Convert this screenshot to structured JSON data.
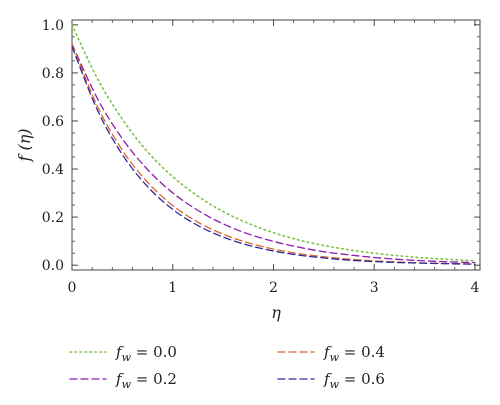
{
  "chart_data": {
    "type": "line",
    "xlabel": "η",
    "ylabel": "f (η)",
    "xlim": [
      0,
      4.05
    ],
    "ylim": [
      -0.02,
      1.02
    ],
    "x_ticks": [
      0,
      1,
      2,
      3,
      4
    ],
    "y_ticks": [
      0.0,
      0.2,
      0.4,
      0.6,
      0.8,
      1.0
    ],
    "x_tick_labels": [
      "0",
      "1",
      "2",
      "3",
      "4"
    ],
    "y_tick_labels": [
      "0.0",
      "0.2",
      "0.4",
      "0.6",
      "0.8",
      "1.0"
    ],
    "legend_position": "bottom",
    "x": [
      0,
      0.25,
      0.5,
      0.75,
      1.0,
      1.25,
      1.5,
      1.75,
      2.0,
      2.25,
      2.5,
      2.75,
      3.0,
      3.25,
      3.5,
      3.75,
      4.0
    ],
    "series": [
      {
        "name": "f",
        "subscript": "w",
        "value": "= 0.0",
        "color": "#7cc242",
        "style": "dotted",
        "values": [
          1.0,
          0.778,
          0.607,
          0.472,
          0.368,
          0.287,
          0.223,
          0.174,
          0.135,
          0.105,
          0.082,
          0.064,
          0.05,
          0.039,
          0.03,
          0.024,
          0.018
        ]
      },
      {
        "name": "f",
        "subscript": "w",
        "value": "= 0.2",
        "color": "#8b1fa8",
        "style": "dashed",
        "values": [
          0.92,
          0.695,
          0.526,
          0.398,
          0.301,
          0.228,
          0.172,
          0.13,
          0.099,
          0.075,
          0.056,
          0.043,
          0.032,
          0.024,
          0.018,
          0.014,
          0.011
        ]
      },
      {
        "name": "f",
        "subscript": "w",
        "value": "= 0.4",
        "color": "#d9642a",
        "style": "dashed",
        "values": [
          0.92,
          0.663,
          0.478,
          0.345,
          0.248,
          0.179,
          0.129,
          0.093,
          0.067,
          0.048,
          0.035,
          0.025,
          0.018,
          0.013,
          0.009,
          0.007,
          0.005
        ]
      },
      {
        "name": "f",
        "subscript": "w",
        "value": "= 0.6",
        "color": "#2b2c9a",
        "style": "dashed",
        "values": [
          0.91,
          0.647,
          0.46,
          0.327,
          0.232,
          0.165,
          0.117,
          0.083,
          0.059,
          0.042,
          0.03,
          0.021,
          0.015,
          0.011,
          0.008,
          0.006,
          0.004
        ]
      }
    ]
  }
}
